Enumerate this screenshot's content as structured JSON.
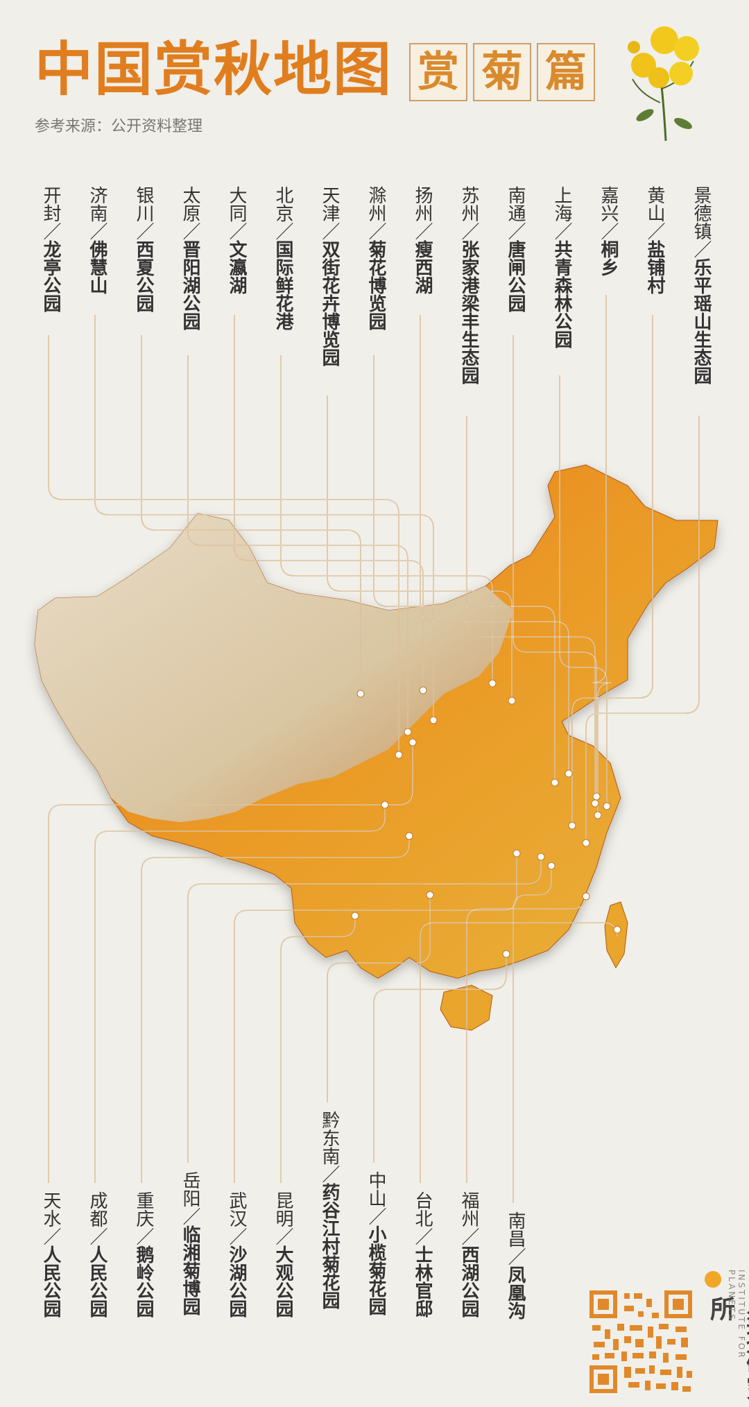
{
  "title": "中国赏秋地图",
  "subtitle_chars": [
    "赏",
    "菊",
    "篇"
  ],
  "source": "参考来源：公开资料整理",
  "brand": "星球研究所",
  "brand_en": "INSTITUTE FOR PLANETS",
  "colors": {
    "title": "#e07e1f",
    "line": "#c9a06b",
    "map_east": "#e9911f",
    "map_west": "#d9cfb9",
    "dot": "#ffffff"
  },
  "top_labels": [
    {
      "city": "开封",
      "place": "龙亭公园"
    },
    {
      "city": "济南",
      "place": "佛慧山"
    },
    {
      "city": "银川",
      "place": "西夏公园"
    },
    {
      "city": "太原",
      "place": "晋阳湖公园"
    },
    {
      "city": "大同",
      "place": "文瀛湖"
    },
    {
      "city": "北京",
      "place": "国际鲜花港"
    },
    {
      "city": "天津",
      "place": "双街花卉博览园"
    },
    {
      "city": "滁州",
      "place": "菊花博览园"
    },
    {
      "city": "扬州",
      "place": "瘦西湖"
    },
    {
      "city": "苏州",
      "place": "张家港梁丰生态园"
    },
    {
      "city": "南通",
      "place": "唐闸公园"
    },
    {
      "city": "上海",
      "place": "共青森林公园"
    },
    {
      "city": "嘉兴",
      "place": "桐乡"
    },
    {
      "city": "黄山",
      "place": "盐铺村"
    },
    {
      "city": "景德镇",
      "place": "乐平瑶山生态园"
    }
  ],
  "bottom_labels": [
    {
      "city": "天水",
      "place": "人民公园"
    },
    {
      "city": "成都",
      "place": "人民公园"
    },
    {
      "city": "重庆",
      "place": "鹅岭公园"
    },
    {
      "city": "岳阳",
      "place": "临湘菊博园"
    },
    {
      "city": "武汉",
      "place": "沙湖公园"
    },
    {
      "city": "昆明",
      "place": "大观公园"
    },
    {
      "city": "黔东南",
      "place": "药谷江村菊花园"
    },
    {
      "city": "中山",
      "place": "小榄菊花园"
    },
    {
      "city": "台北",
      "place": "士林官邸"
    },
    {
      "city": "福州",
      "place": "西湖公园"
    },
    {
      "city": "南昌",
      "place": "凤凰沟"
    }
  ]
}
